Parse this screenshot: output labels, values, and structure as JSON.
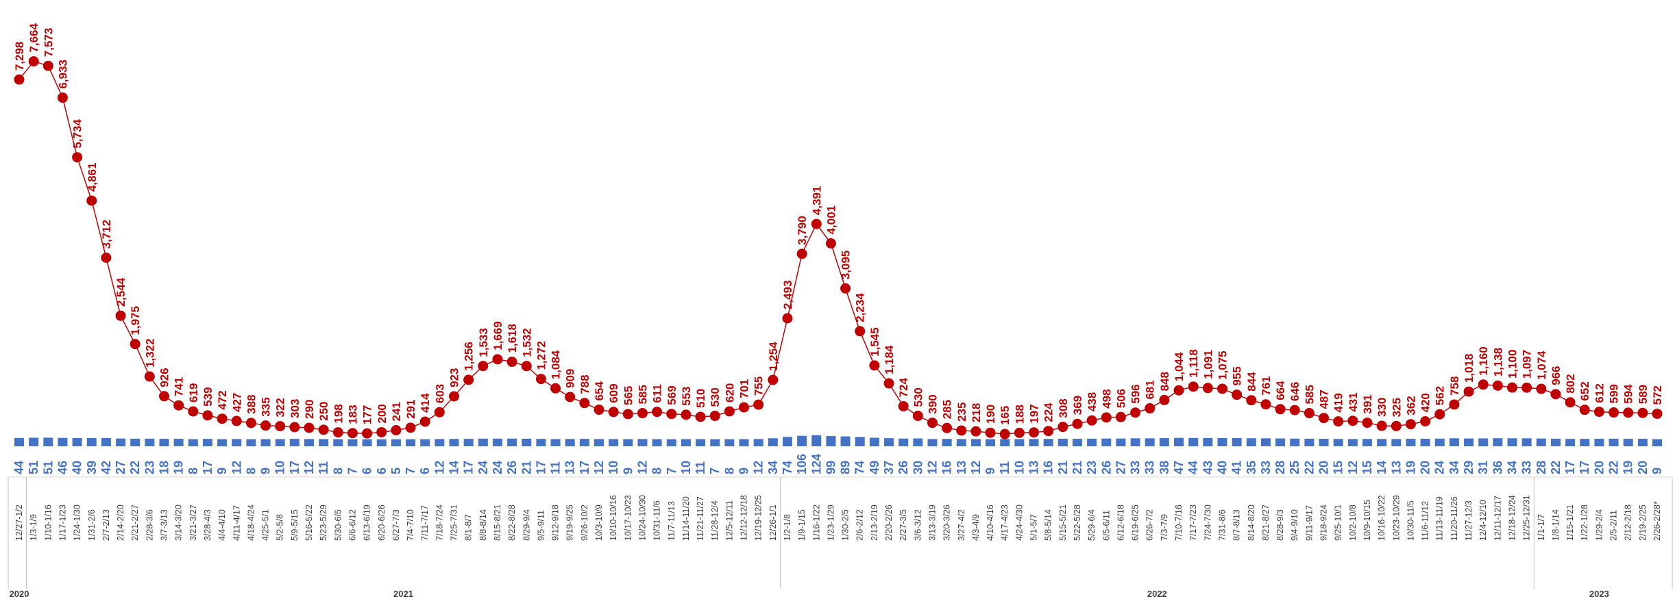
{
  "chart_data": {
    "type": "line",
    "categories": [
      "12/27-1/2",
      "1/3-1/9",
      "1/10-1/16",
      "1/17-1/23",
      "1/24-1/30",
      "1/31-2/6",
      "2/7-2/13",
      "2/14-2/20",
      "2/21-2/27",
      "2/28-3/6",
      "3/7-3/13",
      "3/14-3/20",
      "3/21-3/27",
      "3/28-4/3",
      "4/4-4/10",
      "4/11-4/17",
      "4/18-4/24",
      "4/25-5/1",
      "5/2-5/8",
      "5/9-5/15",
      "5/16-5/22",
      "5/23-5/29",
      "5/30-6/5",
      "6/6-6/12",
      "6/13-6/19",
      "6/20-6/26",
      "6/27-7/3",
      "7/4-7/10",
      "7/11-7/17",
      "7/18-7/24",
      "7/25-7/31",
      "8/1-8/7",
      "8/8-8/14",
      "8/15-8/21",
      "8/22-8/28",
      "8/29-9/4",
      "9/5-9/11",
      "9/12-9/18",
      "9/19-9/25",
      "9/26-10/2",
      "10/3-10/9",
      "10/10-10/16",
      "10/17-10/23",
      "10/24-10/30",
      "10/31-11/6",
      "11/7-11/13",
      "11/14-11/20",
      "11/21-11/27",
      "11/28-12/4",
      "12/5-12/11",
      "12/12-12/18",
      "12/19-12/25",
      "12/26-1/1",
      "1/2-1/8",
      "1/9-1/15",
      "1/16-1/22",
      "1/23-1/29",
      "1/30-2/5",
      "2/6-2/12",
      "2/13-2/19",
      "2/20-2/26",
      "2/27-3/5",
      "3/6-3/12",
      "3/13-3/19",
      "3/20-3/26",
      "3/27-4/2",
      "4/3-4/9",
      "4/10-4/16",
      "4/17-4/23",
      "4/24-4/30",
      "5/1-5/7",
      "5/8-5/14",
      "5/15-5/21",
      "5/22-5/28",
      "5/29-6/4",
      "6/5-6/11",
      "6/12-6/18",
      "6/19-6/25",
      "6/26-7/2",
      "7/3-7/9",
      "7/10-7/16",
      "7/17-7/23",
      "7/24-7/30",
      "7/31-8/6",
      "8/7-8/13",
      "8/14-8/20",
      "8/21-8/27",
      "8/28-9/3",
      "9/4-9/10",
      "9/11-9/17",
      "9/18-9/24",
      "9/25-10/1",
      "10/2-10/8",
      "10/9-10/15",
      "10/16-10/22",
      "10/23-10/29",
      "10/30-11/5",
      "11/6-11/12",
      "11/13-11/19",
      "11/20-11/26",
      "11/27-12/3",
      "12/4-12/10",
      "12/11-12/17",
      "12/18-12/24",
      "12/25-12/31",
      "1/1-1/7",
      "1/8-1/14",
      "1/15-1/21",
      "1/22-1/28",
      "1/29-2/4",
      "2/5-2/11",
      "2/12-2/18",
      "2/19-2/25",
      "2/26-2/28*"
    ],
    "series": [
      {
        "type": "line",
        "color": "#c00000",
        "values": [
          7298,
          7664,
          7573,
          6933,
          5734,
          4861,
          3712,
          2544,
          1975,
          1322,
          926,
          741,
          619,
          539,
          472,
          427,
          388,
          335,
          322,
          303,
          290,
          250,
          198,
          183,
          177,
          200,
          241,
          291,
          414,
          603,
          923,
          1256,
          1533,
          1669,
          1618,
          1532,
          1272,
          1084,
          909,
          788,
          654,
          609,
          565,
          585,
          611,
          569,
          553,
          510,
          530,
          620,
          701,
          755,
          1254,
          2493,
          3790,
          4391,
          4001,
          3095,
          2234,
          1545,
          1184,
          724,
          530,
          390,
          285,
          235,
          218,
          190,
          165,
          188,
          197,
          224,
          308,
          369,
          438,
          498,
          506,
          596,
          681,
          848,
          1044,
          1118,
          1091,
          1075,
          955,
          844,
          761,
          664,
          646,
          585,
          487,
          419,
          431,
          391,
          330,
          325,
          362,
          420,
          562,
          758,
          1018,
          1160,
          1138,
          1100,
          1097,
          1074,
          966,
          802,
          652,
          612,
          599,
          594,
          589,
          572
        ],
        "value_labels": [
          "7,298",
          "7,664",
          "7,573",
          "6,933",
          "5,734",
          "4,861",
          "3,712",
          "2,544",
          "1,975",
          "1,322",
          "926",
          "741",
          "619",
          "539",
          "472",
          "427",
          "388",
          "335",
          "322",
          "303",
          "290",
          "250",
          "198",
          "183",
          "177",
          "200",
          "241",
          "291",
          "414",
          "603",
          "923",
          "1,256",
          "1,533",
          "1,669",
          "1,618",
          "1,532",
          "1,272",
          "1,084",
          "909",
          "788",
          "654",
          "609",
          "565",
          "585",
          "611",
          "569",
          "553",
          "510",
          "530",
          "620",
          "701",
          "755",
          "1,254",
          "2,493",
          "3,790",
          "4,391",
          "4,001",
          "3,095",
          "2,234",
          "1,545",
          "1,184",
          "724",
          "530",
          "390",
          "285",
          "235",
          "218",
          "190",
          "165",
          "188",
          "197",
          "224",
          "308",
          "369",
          "438",
          "498",
          "506",
          "596",
          "681",
          "848",
          "1,044",
          "1,118",
          "1,091",
          "1,075",
          "955",
          "844",
          "761",
          "664",
          "646",
          "585",
          "487",
          "419",
          "431",
          "391",
          "330",
          "325",
          "362",
          "420",
          "562",
          "758",
          "1,018",
          "1,160",
          "1,138",
          "1,100",
          "1,097",
          "1,074",
          "966",
          "802",
          "652",
          "612",
          "599",
          "594",
          "589",
          "572"
        ]
      },
      {
        "type": "bar",
        "color": "#4472c4",
        "values": [
          44,
          51,
          51,
          46,
          40,
          39,
          42,
          27,
          22,
          23,
          18,
          19,
          8,
          17,
          9,
          12,
          8,
          9,
          10,
          17,
          12,
          11,
          8,
          7,
          6,
          6,
          5,
          7,
          6,
          12,
          14,
          17,
          24,
          24,
          26,
          21,
          17,
          11,
          13,
          17,
          12,
          10,
          9,
          12,
          8,
          7,
          10,
          11,
          7,
          8,
          9,
          12,
          34,
          74,
          106,
          124,
          99,
          89,
          74,
          49,
          37,
          26,
          30,
          12,
          16,
          13,
          12,
          9,
          11,
          10,
          13,
          16,
          21,
          21,
          23,
          26,
          27,
          33,
          33,
          38,
          47,
          44,
          43,
          40,
          41,
          35,
          33,
          28,
          25,
          22,
          20,
          15,
          12,
          15,
          14,
          13,
          19,
          20,
          24,
          34,
          29,
          31,
          36,
          34,
          33,
          28,
          22,
          17,
          17,
          20,
          22,
          19,
          20,
          9
        ]
      }
    ],
    "year_labels": [
      "2020",
      "2021",
      "2022",
      "2023"
    ]
  }
}
